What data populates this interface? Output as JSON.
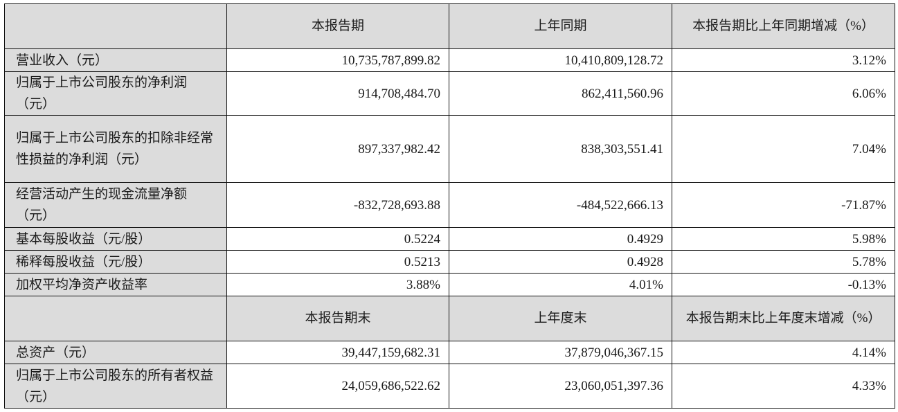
{
  "header1": {
    "c1": "本报告期",
    "c2": "上年同期",
    "c3": "本报告期比上年同期增减（%）"
  },
  "rows1": [
    {
      "label": "营业收入（元）",
      "v1": "10,735,787,899.82",
      "v2": "10,410,809,128.72",
      "v3": "3.12%"
    },
    {
      "label": "归属于上市公司股东的净利润（元）",
      "v1": "914,708,484.70",
      "v2": "862,411,560.96",
      "v3": "6.06%"
    },
    {
      "label": "归属于上市公司股东的扣除非经常性损益的净利润（元）",
      "v1": "897,337,982.42",
      "v2": "838,303,551.41",
      "v3": "7.04%"
    },
    {
      "label": "经营活动产生的现金流量净额（元）",
      "v1": "-832,728,693.88",
      "v2": "-484,522,666.13",
      "v3": "-71.87%"
    },
    {
      "label": "基本每股收益（元/股）",
      "v1": "0.5224",
      "v2": "0.4929",
      "v3": "5.98%"
    },
    {
      "label": "稀释每股收益（元/股）",
      "v1": "0.5213",
      "v2": "0.4928",
      "v3": "5.78%"
    },
    {
      "label": "加权平均净资产收益率",
      "v1": "3.88%",
      "v2": "4.01%",
      "v3": "-0.13%"
    }
  ],
  "header2": {
    "c1": "本报告期末",
    "c2": "上年度末",
    "c3": "本报告期末比上年度末增减（%）"
  },
  "rows2": [
    {
      "label": "总资产（元）",
      "v1": "39,447,159,682.31",
      "v2": "37,879,046,367.15",
      "v3": "4.14%"
    },
    {
      "label": "归属于上市公司股东的所有者权益（元）",
      "v1": "24,059,686,522.62",
      "v2": "23,060,051,397.36",
      "v3": "4.33%"
    }
  ]
}
